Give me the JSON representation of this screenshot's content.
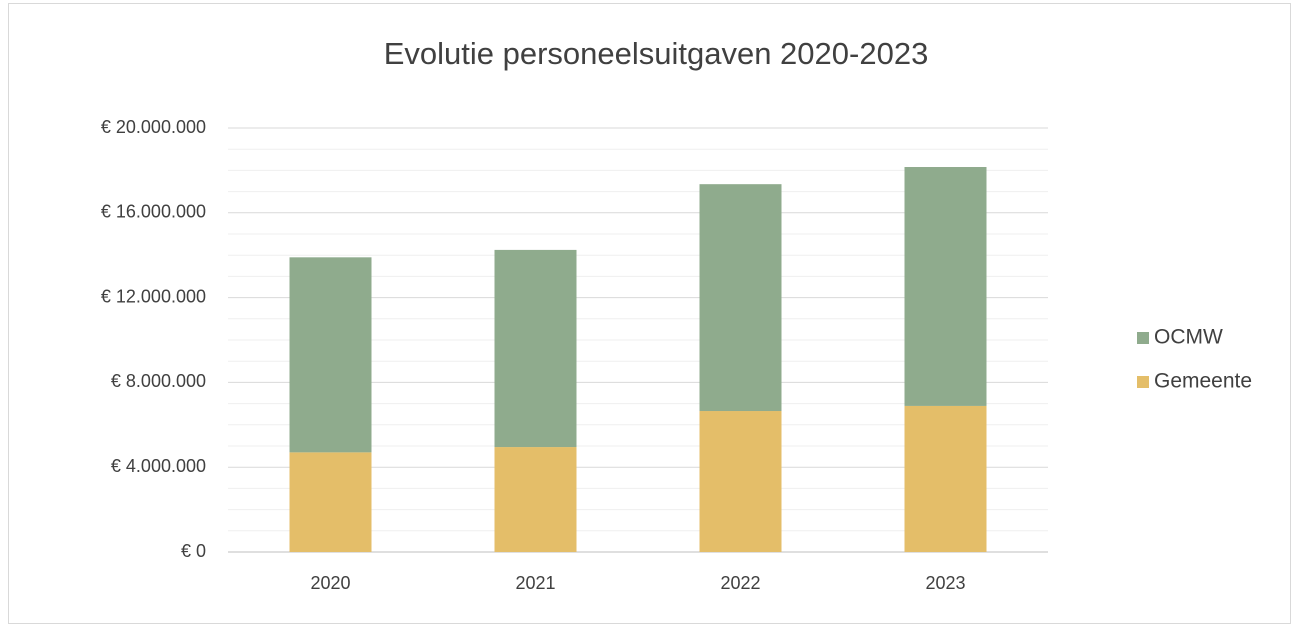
{
  "chart_data": {
    "type": "stacked_bar",
    "title": "Evolutie personeelsuitgaven 2020-2023",
    "categories": [
      "2020",
      "2021",
      "2022",
      "2023"
    ],
    "series": [
      {
        "name": "Gemeente",
        "color": "#e4be69",
        "values": [
          4700000,
          4950000,
          6650000,
          6890000
        ]
      },
      {
        "name": "OCMW",
        "color": "#8fab8d",
        "values": [
          9200000,
          9300000,
          10700000,
          11270000
        ]
      }
    ],
    "ylim": [
      0,
      20000000
    ],
    "yticks": [
      {
        "value": 0,
        "label": "€ 0"
      },
      {
        "value": 4000000,
        "label": "€ 4.000.000"
      },
      {
        "value": 8000000,
        "label": "€ 8.000.000"
      },
      {
        "value": 12000000,
        "label": "€ 12.000.000"
      },
      {
        "value": 16000000,
        "label": "€ 16.000.000"
      },
      {
        "value": 20000000,
        "label": "€ 20.000.000"
      }
    ],
    "grid": true,
    "minor_grid": true,
    "legend": "right"
  }
}
